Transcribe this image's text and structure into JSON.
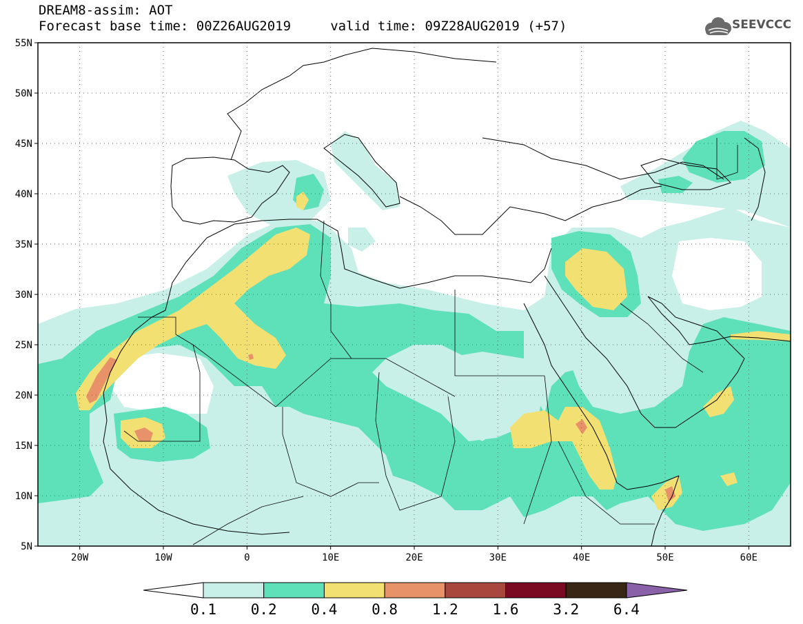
{
  "header": {
    "title_line1": "DREAM8-assim: AOT",
    "title_line2": "Forecast base time: 00Z26AUG2019     valid time: 09Z28AUG2019 (+57)"
  },
  "logo": {
    "text": "SEEVCCC",
    "icon": "cloud-icon"
  },
  "map": {
    "lon_range": [
      -25,
      65
    ],
    "lat_range": [
      5,
      55
    ],
    "lon_ticks": [
      {
        "value": -20,
        "label": "20W"
      },
      {
        "value": -10,
        "label": "10W"
      },
      {
        "value": 0,
        "label": "0"
      },
      {
        "value": 10,
        "label": "10E"
      },
      {
        "value": 20,
        "label": "20E"
      },
      {
        "value": 30,
        "label": "30E"
      },
      {
        "value": 40,
        "label": "40E"
      },
      {
        "value": 50,
        "label": "50E"
      },
      {
        "value": 60,
        "label": "60E"
      }
    ],
    "lat_ticks": [
      {
        "value": 55,
        "label": "55N"
      },
      {
        "value": 50,
        "label": "50N"
      },
      {
        "value": 45,
        "label": "45N"
      },
      {
        "value": 40,
        "label": "40N"
      },
      {
        "value": 35,
        "label": "35N"
      },
      {
        "value": 30,
        "label": "30N"
      },
      {
        "value": 25,
        "label": "25N"
      },
      {
        "value": 20,
        "label": "20N"
      },
      {
        "value": 15,
        "label": "15N"
      },
      {
        "value": 10,
        "label": "10N"
      },
      {
        "value": 5,
        "label": "5N"
      }
    ],
    "grid": true
  },
  "colorbar": {
    "colors": [
      "#c8f0e8",
      "#5ee0b8",
      "#f2e072",
      "#e8926a",
      "#a8483c",
      "#7a0a22",
      "#3a2614"
    ],
    "over_color": "#8a60a8",
    "labels": [
      "0.1",
      "0.2",
      "0.4",
      "0.8",
      "1.2",
      "1.6",
      "3.2",
      "6.4"
    ]
  }
}
